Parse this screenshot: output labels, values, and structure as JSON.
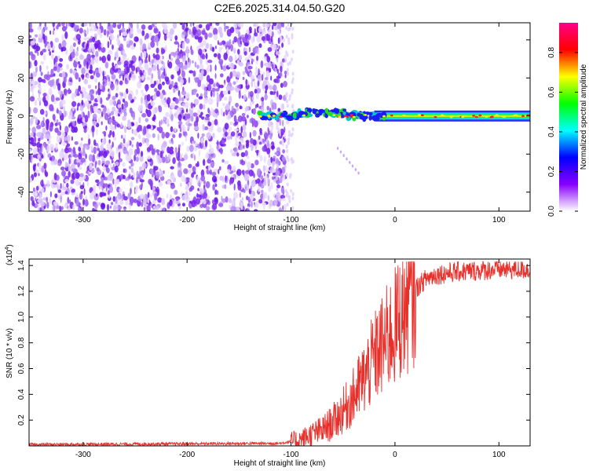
{
  "title": "C2E6.2025.314.04.50.G20",
  "chart_data": [
    {
      "type": "heatmap",
      "xlabel": "Height of straight line (km)",
      "ylabel": "Frequency (Hz)",
      "xlim": [
        -352,
        130
      ],
      "ylim": [
        -50,
        49
      ],
      "xticks": [
        -300,
        -200,
        -100,
        0,
        100
      ],
      "yticks": [
        -40,
        -20,
        0,
        20,
        40
      ],
      "noise_region_x": [
        -352,
        -105
      ],
      "signal_start_x": -130,
      "signal_frequency_hz": 0,
      "descending_trail": {
        "x": [
          -55,
          -35
        ],
        "y": [
          -17,
          -30
        ]
      },
      "colorbar": {
        "label": "Normalized spectral amplitude",
        "range": [
          0,
          0.95
        ],
        "ticks": [
          0.0,
          0.2,
          0.4,
          0.6,
          0.8
        ],
        "colors": [
          "#ffffff",
          "#8800ff",
          "#0000ff",
          "#00ffff",
          "#00ff00",
          "#ffff00",
          "#ff0000",
          "#ff0088"
        ]
      }
    },
    {
      "type": "line",
      "xlabel": "Height of straight line (km)",
      "ylabel": "SNR (10 * v/v)",
      "exponent_label": "(x10",
      "exponent_power": "4",
      "exponent_close": ")",
      "xlim": [
        -352,
        130
      ],
      "ylim": [
        0,
        1.45
      ],
      "xticks": [
        -300,
        -200,
        -100,
        0,
        100
      ],
      "yticks": [
        0.2,
        0.4,
        0.6,
        0.8,
        1.0,
        1.2,
        1.4
      ],
      "series_color": "#e8302b",
      "envelope": {
        "x": [
          -352,
          -110,
          -90,
          -80,
          -70,
          -60,
          -50,
          -40,
          -30,
          -20,
          -10,
          0,
          10,
          20,
          30,
          40,
          60,
          80,
          100,
          130
        ],
        "y": [
          0.01,
          0.02,
          0.05,
          0.09,
          0.12,
          0.18,
          0.27,
          0.38,
          0.52,
          0.68,
          0.8,
          0.92,
          1.08,
          1.22,
          1.3,
          1.33,
          1.35,
          1.36,
          1.37,
          1.37
        ]
      }
    }
  ]
}
